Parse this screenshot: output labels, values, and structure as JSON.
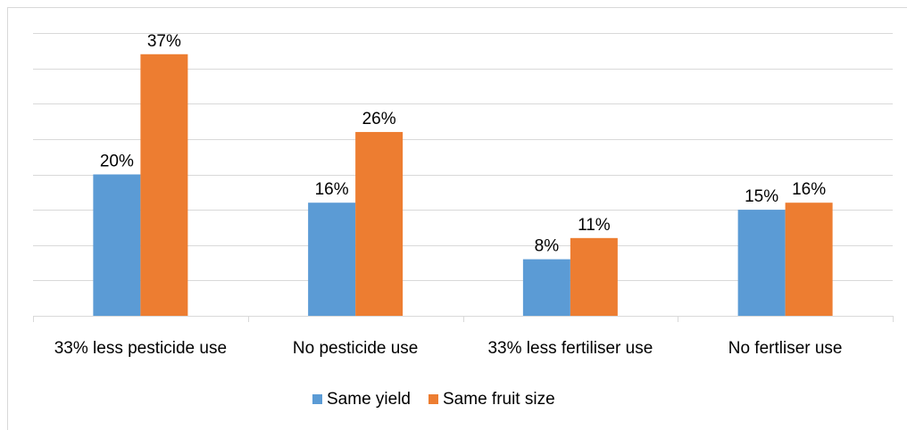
{
  "chart_data": {
    "type": "bar",
    "categories": [
      "33% less pesticide use",
      "No pesticide use",
      "33% less fertiliser use",
      "No fertliser use"
    ],
    "series": [
      {
        "name": "Same yield",
        "color": "#5b9bd5",
        "values": [
          20,
          16,
          8,
          15
        ],
        "value_labels": [
          "20%",
          "16%",
          "8%",
          "15%"
        ]
      },
      {
        "name": "Same fruit size",
        "color": "#ed7d31",
        "values": [
          37,
          26,
          11,
          16
        ],
        "value_labels": [
          "37%",
          "26%",
          "11%",
          "16%"
        ]
      }
    ],
    "ylim": [
      0,
      40
    ],
    "yticks": [
      0,
      5,
      10,
      15,
      20,
      25,
      30,
      35,
      40
    ],
    "grid": true,
    "legend": "bottom"
  }
}
